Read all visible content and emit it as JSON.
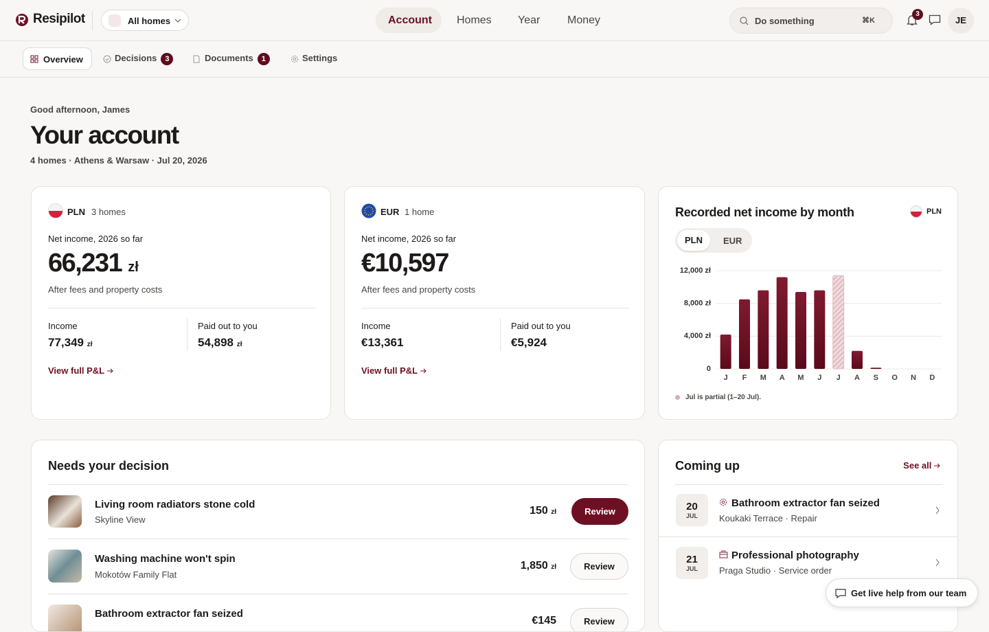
{
  "header": {
    "brand": "Resipilot",
    "home_selector": "All homes",
    "nav": [
      "Account",
      "Homes",
      "Year",
      "Money"
    ],
    "search": "Do something",
    "shortcut": "⌘K",
    "notifications": 3,
    "avatar": "JE"
  },
  "tabs": [
    {
      "label": "Overview"
    },
    {
      "label": "Decisions",
      "badge": 3
    },
    {
      "label": "Documents",
      "badge": 1
    },
    {
      "label": "Settings"
    }
  ],
  "greeting": "Good afternoon, James",
  "title": "Your account",
  "subtitle": "4 homes · Athens & Warsaw · Jul 20, 2026",
  "cards": [
    {
      "currency": "PLN",
      "homes": "3 homes",
      "label": "Net income, 2026 so far",
      "value": "66,231",
      "unit": "zł",
      "note": "After fees and property costs",
      "income_label": "Income",
      "income": "77,349",
      "income_unit": "zł",
      "paid_label": "Paid out to you",
      "paid": "54,898",
      "paid_unit": "zł",
      "link": "View full P&L"
    },
    {
      "currency": "EUR",
      "homes": "1 home",
      "label": "Net income, 2026 so far",
      "value": "€10,597",
      "note": "After fees and property costs",
      "income_label": "Income",
      "income": "€13,361",
      "paid_label": "Paid out to you",
      "paid": "€5,924",
      "link": "View full P&L"
    }
  ],
  "chart_data": {
    "type": "bar",
    "title": "Recorded net income by month",
    "currency_badge": "PLN",
    "toggle": [
      "PLN",
      "EUR"
    ],
    "categories": [
      "J",
      "F",
      "M",
      "A",
      "M",
      "J",
      "J",
      "A",
      "S",
      "O",
      "N",
      "D"
    ],
    "values": [
      4200,
      8500,
      9600,
      11200,
      9400,
      9600,
      11400,
      2200,
      150,
      null,
      null,
      null
    ],
    "partial": [
      false,
      false,
      false,
      false,
      false,
      false,
      true,
      false,
      false,
      false,
      false,
      false
    ],
    "color": "#6e1024",
    "partial_color": "#e3bcc1",
    "ylim": [
      0,
      12000
    ],
    "yticks": [
      0,
      {
        "value": 4000,
        "label": "4,000 zł"
      },
      {
        "value": 8000,
        "label": "8,000 zł"
      },
      {
        "value": 12000,
        "label": "12,000 zł"
      }
    ],
    "grid": true,
    "note": "Jul is partial (1–20 Jul)."
  },
  "decisions": {
    "title": "Needs your decision",
    "items": [
      {
        "title": "Living room radiators stone cold",
        "property": "Skyline View",
        "amount": "150",
        "unit": "zł",
        "action": "Review"
      },
      {
        "title": "Washing machine won't spin",
        "property": "Mokotów Family Flat",
        "amount": "1,850",
        "unit": "zł",
        "action": "Review"
      },
      {
        "title": "Bathroom extractor fan seized",
        "amount": "€145",
        "action": "Review"
      }
    ]
  },
  "coming_up": {
    "title": "Coming up",
    "link": "See all",
    "items": [
      {
        "day": "20",
        "month": "JUL",
        "title": "Bathroom extractor fan seized",
        "sub": "Koukaki Terrace · Repair"
      },
      {
        "day": "21",
        "month": "JUL",
        "title": "Professional photography",
        "sub": "Praga Studio · Service order"
      }
    ]
  },
  "help": "Get live help from our team"
}
